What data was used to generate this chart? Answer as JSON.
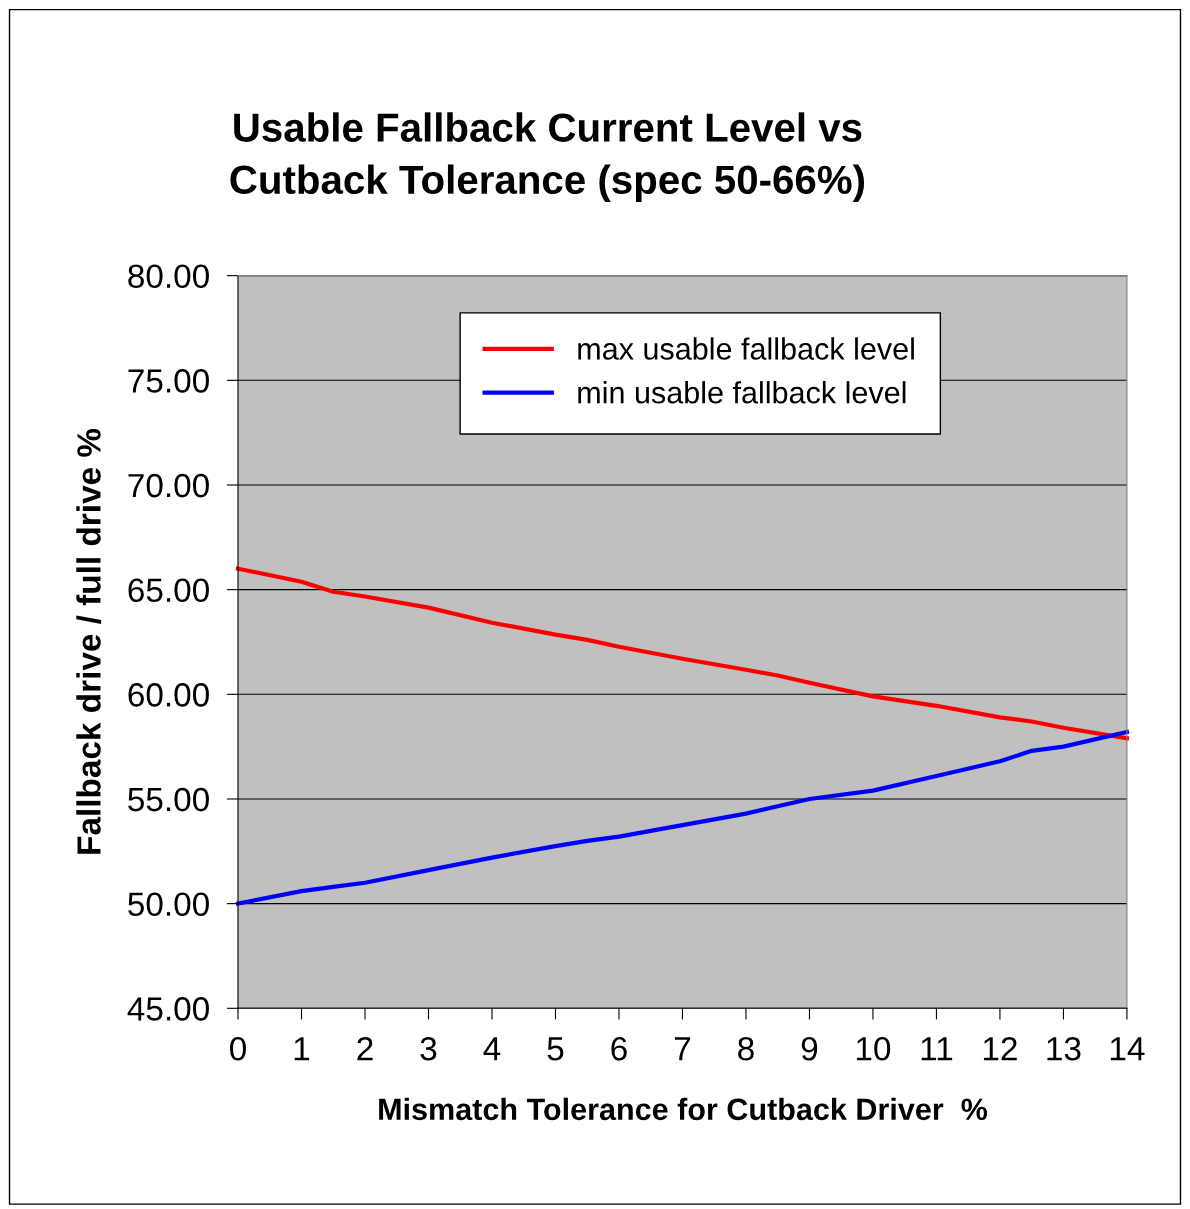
{
  "chart_data": {
    "type": "line",
    "title": "Usable Fallback Current Level vs\nCutback Tolerance (spec 50-66%)",
    "xlabel": "Mismatch Tolerance for Cutback Driver  %",
    "ylabel": "Fallback drive / full drive %",
    "x": [
      0,
      1,
      1.5,
      2,
      3,
      4,
      5,
      5.5,
      6,
      7,
      8,
      8.5,
      9,
      10,
      11,
      12,
      12.5,
      13,
      14
    ],
    "series": [
      {
        "name": "max usable fallback level",
        "color": "#ff0000",
        "values": [
          66.0,
          65.38,
          64.9,
          64.67,
          64.14,
          63.42,
          62.85,
          62.6,
          62.27,
          61.7,
          61.17,
          60.9,
          60.55,
          59.9,
          59.45,
          58.9,
          58.7,
          58.4,
          57.9
        ]
      },
      {
        "name": "min usable fallback level",
        "color": "#0000ff",
        "values": [
          50.0,
          50.6,
          50.8,
          51.0,
          51.6,
          52.2,
          52.75,
          53.0,
          53.2,
          53.75,
          54.3,
          54.65,
          55.0,
          55.4,
          56.1,
          56.8,
          57.3,
          57.5,
          58.2
        ]
      }
    ],
    "xlim": [
      0,
      14
    ],
    "xticks": [
      0,
      1,
      2,
      3,
      4,
      5,
      6,
      7,
      8,
      9,
      10,
      11,
      12,
      13,
      14
    ],
    "ylim": [
      45,
      80
    ],
    "yticks": [
      {
        "value": 45,
        "label": "45.00"
      },
      {
        "value": 50,
        "label": "50.00"
      },
      {
        "value": 55,
        "label": "55.00"
      },
      {
        "value": 60,
        "label": "60.00"
      },
      {
        "value": 65,
        "label": "65.00"
      },
      {
        "value": 70,
        "label": "70.00"
      },
      {
        "value": 75,
        "label": "75.00"
      },
      {
        "value": 80,
        "label": "80.00"
      }
    ],
    "grid": "y",
    "legend": "top",
    "marker": "none",
    "line_style": "solid"
  }
}
